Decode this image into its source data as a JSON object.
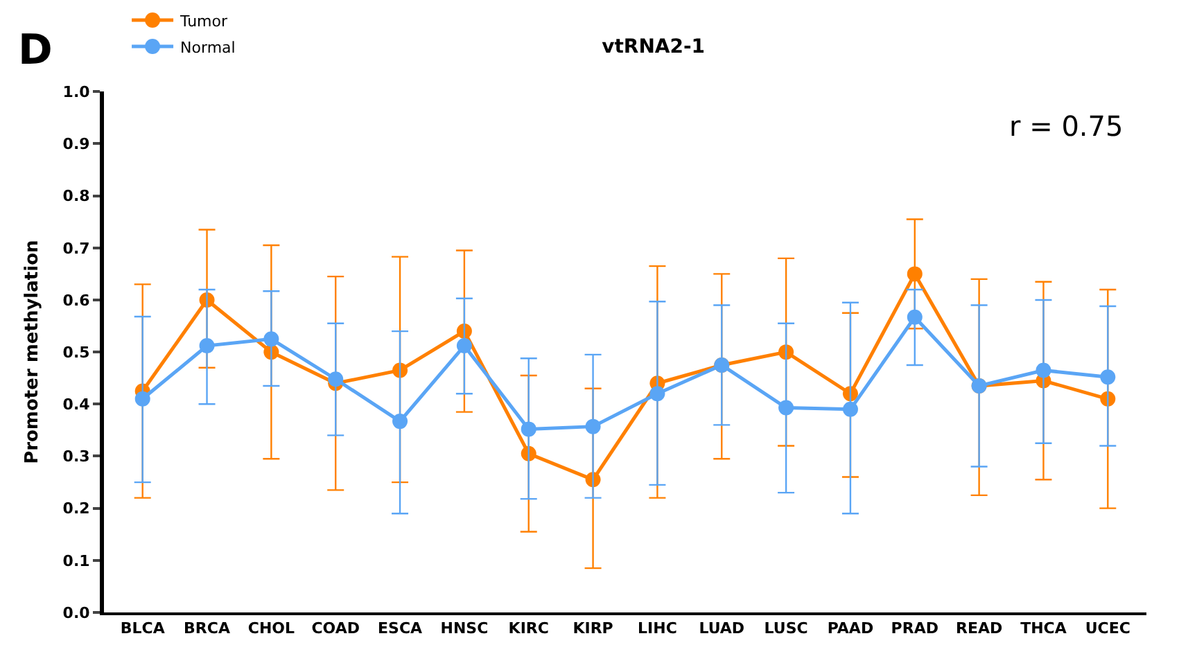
{
  "chart_data": {
    "type": "line",
    "title": "vtRNA2-1",
    "ylabel": "Promoter methylation",
    "categories": [
      "BLCA",
      "BRCA",
      "CHOL",
      "COAD",
      "ESCA",
      "HNSC",
      "KIRC",
      "KIRP",
      "LIHC",
      "LUAD",
      "LUSC",
      "PAAD",
      "PRAD",
      "READ",
      "THCA",
      "UCEC"
    ],
    "series": [
      {
        "name": "Tumor",
        "color": "#ff8000",
        "values": [
          0.425,
          0.6,
          0.5,
          0.44,
          0.465,
          0.54,
          0.305,
          0.255,
          0.44,
          0.475,
          0.5,
          0.42,
          0.65,
          0.435,
          0.445,
          0.41
        ],
        "errors": [
          [
            0.22,
            0.63
          ],
          [
            0.47,
            0.735
          ],
          [
            0.295,
            0.705
          ],
          [
            0.235,
            0.645
          ],
          [
            0.25,
            0.683
          ],
          [
            0.385,
            0.695
          ],
          [
            0.155,
            0.455
          ],
          [
            0.085,
            0.43
          ],
          [
            0.22,
            0.665
          ],
          [
            0.295,
            0.65
          ],
          [
            0.32,
            0.68
          ],
          [
            0.26,
            0.575
          ],
          [
            0.545,
            0.755
          ],
          [
            0.225,
            0.64
          ],
          [
            0.255,
            0.635
          ],
          [
            0.2,
            0.62
          ]
        ]
      },
      {
        "name": "Normal",
        "color": "#5aa5f5",
        "values": [
          0.41,
          0.512,
          0.525,
          0.448,
          0.367,
          0.512,
          0.352,
          0.357,
          0.42,
          0.475,
          0.393,
          0.39,
          0.567,
          0.435,
          0.465,
          0.452
        ],
        "errors": [
          [
            0.25,
            0.568
          ],
          [
            0.4,
            0.62
          ],
          [
            0.435,
            0.617
          ],
          [
            0.34,
            0.555
          ],
          [
            0.19,
            0.54
          ],
          [
            0.42,
            0.603
          ],
          [
            0.218,
            0.488
          ],
          [
            0.22,
            0.495
          ],
          [
            0.245,
            0.597
          ],
          [
            0.36,
            0.59
          ],
          [
            0.23,
            0.555
          ],
          [
            0.19,
            0.595
          ],
          [
            0.475,
            0.62
          ],
          [
            0.28,
            0.59
          ],
          [
            0.325,
            0.6
          ],
          [
            0.32,
            0.588
          ]
        ]
      }
    ],
    "ylim": [
      0,
      1.0
    ],
    "yticks": [
      {
        "value": 0,
        "label": "0.0"
      },
      0.1,
      0.2,
      0.3,
      0.4,
      0.5,
      0.6,
      0.7,
      0.8,
      0.9,
      {
        "value": 1,
        "label": "1.0"
      }
    ],
    "legend": "top left",
    "marker": "circle",
    "line_style": "solid",
    "annotations": [
      "D",
      "r = 0.75"
    ]
  }
}
